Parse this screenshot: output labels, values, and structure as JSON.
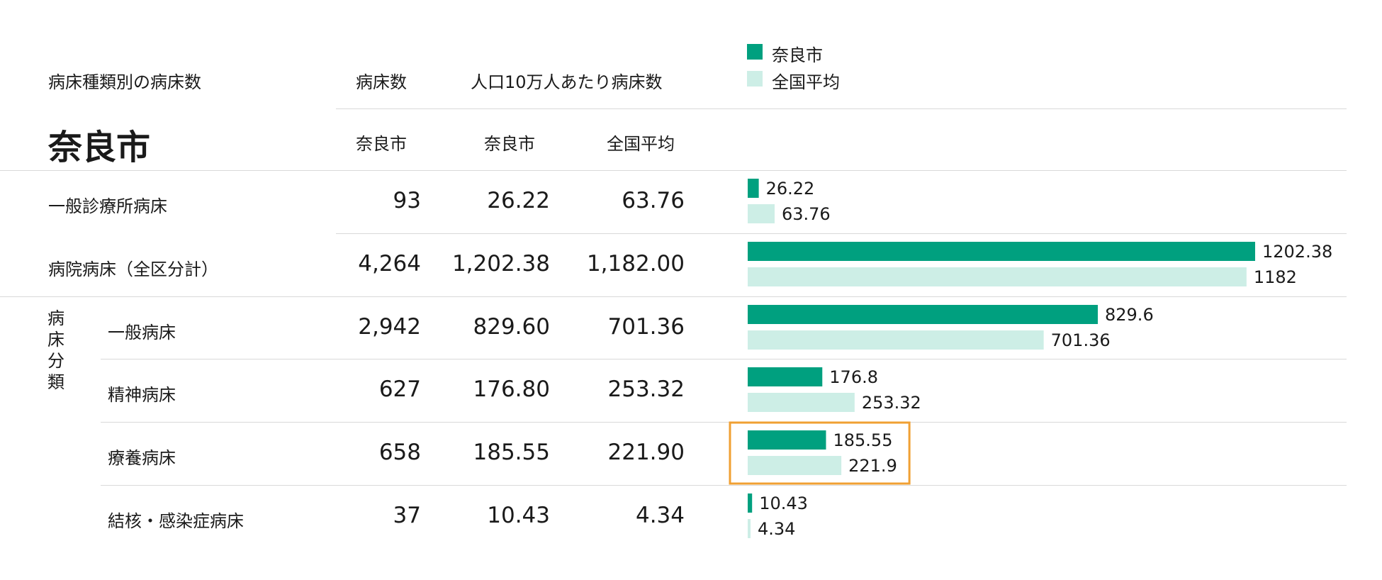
{
  "header": {
    "section_title": "病床種類別の病床数",
    "city_name": "奈良市",
    "col_beds": "病床数",
    "col_per100k": "人口10万人あたり病床数",
    "sub_city_beds": "奈良市",
    "sub_city_per100k": "奈良市",
    "sub_national": "全国平均"
  },
  "legend": {
    "city_label": "奈良市",
    "national_label": "全国平均"
  },
  "group_label": [
    "病",
    "床",
    "分",
    "類"
  ],
  "rows": [
    {
      "label": "一般診療所病床",
      "beds": "93",
      "city": "26.22",
      "national": "63.76"
    },
    {
      "label": "病院病床（全区分計）",
      "beds": "4,264",
      "city": "1,202.38",
      "national": "1,182.00"
    },
    {
      "label": "一般病床",
      "beds": "2,942",
      "city": "829.60",
      "national": "701.36"
    },
    {
      "label": "精神病床",
      "beds": "627",
      "city": "176.80",
      "national": "253.32"
    },
    {
      "label": "療養病床",
      "beds": "658",
      "city": "185.55",
      "national": "221.90"
    },
    {
      "label": "結核・感染症病床",
      "beds": "37",
      "city": "10.43",
      "national": "4.34"
    }
  ],
  "colors": {
    "city": "#00a07f",
    "national": "#cdeee6",
    "highlight": "#f0a033",
    "grid": "#d9d9d9"
  },
  "chart_data": {
    "type": "bar",
    "orientation": "horizontal",
    "categories": [
      "一般診療所病床",
      "病院病床（全区分計）",
      "一般病床",
      "精神病床",
      "療養病床",
      "結核・感染症病床"
    ],
    "series": [
      {
        "name": "奈良市",
        "values": [
          26.22,
          1202.38,
          829.6,
          176.8,
          185.55,
          10.43
        ],
        "labels": [
          "26.22",
          "1202.38",
          "829.6",
          "176.8",
          "185.55",
          "10.43"
        ]
      },
      {
        "name": "全国平均",
        "values": [
          63.76,
          1182,
          701.36,
          253.32,
          221.9,
          4.34
        ],
        "labels": [
          "63.76",
          "1182",
          "701.36",
          "253.32",
          "221.9",
          "4.34"
        ]
      }
    ],
    "xlim": [
      0,
      1202.38
    ],
    "highlight_category": "療養病床",
    "legend_position": "top-left"
  }
}
